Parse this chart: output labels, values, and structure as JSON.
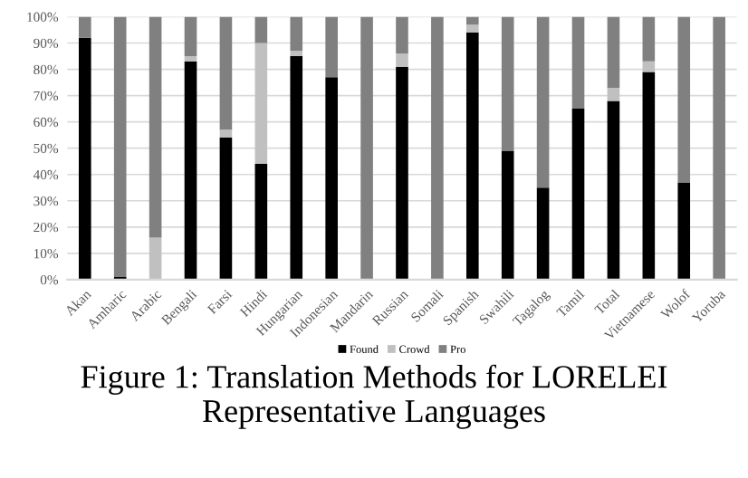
{
  "chart_data": {
    "type": "bar",
    "stacked": true,
    "categories": [
      "Akan",
      "Amharic",
      "Arabic",
      "Bengali",
      "Farsi",
      "Hindi",
      "Hungarian",
      "Indonesian",
      "Mandarin",
      "Russian",
      "Somali",
      "Spanish",
      "Swahili",
      "Tagalog",
      "Tamil",
      "Total",
      "Vietnamese",
      "Wolof",
      "Yoruba"
    ],
    "series": [
      {
        "name": "Found",
        "color": "#000000",
        "values": [
          92,
          1,
          0,
          83,
          54,
          44,
          85,
          77,
          0,
          81,
          0,
          94,
          49,
          35,
          65,
          68,
          79,
          37,
          0
        ]
      },
      {
        "name": "Crowd",
        "color": "#c0c0c0",
        "values": [
          0,
          0,
          16,
          2,
          3,
          46,
          2,
          0,
          0,
          5,
          0,
          3,
          0,
          0,
          0,
          5,
          4,
          0,
          0
        ]
      },
      {
        "name": "Pro",
        "color": "#808080",
        "values": [
          8,
          99,
          84,
          15,
          43,
          10,
          13,
          23,
          100,
          14,
          100,
          3,
          51,
          65,
          35,
          27,
          17,
          63,
          100
        ]
      }
    ],
    "ylim": [
      0,
      100
    ],
    "yticks": [
      {
        "value": 0,
        "label": "0%"
      },
      {
        "value": 10,
        "label": "10%"
      },
      {
        "value": 20,
        "label": "20%"
      },
      {
        "value": 30,
        "label": "30%"
      },
      {
        "value": 40,
        "label": "40%"
      },
      {
        "value": 50,
        "label": "50%"
      },
      {
        "value": 60,
        "label": "60%"
      },
      {
        "value": 70,
        "label": "70%"
      },
      {
        "value": 80,
        "label": "80%"
      },
      {
        "value": 90,
        "label": "90%"
      },
      {
        "value": 100,
        "label": "100%"
      }
    ],
    "grid": "y",
    "legend": "bottom",
    "annotations": [
      "Figure 1: Translation Methods for LORELEI Representative Languages"
    ]
  }
}
